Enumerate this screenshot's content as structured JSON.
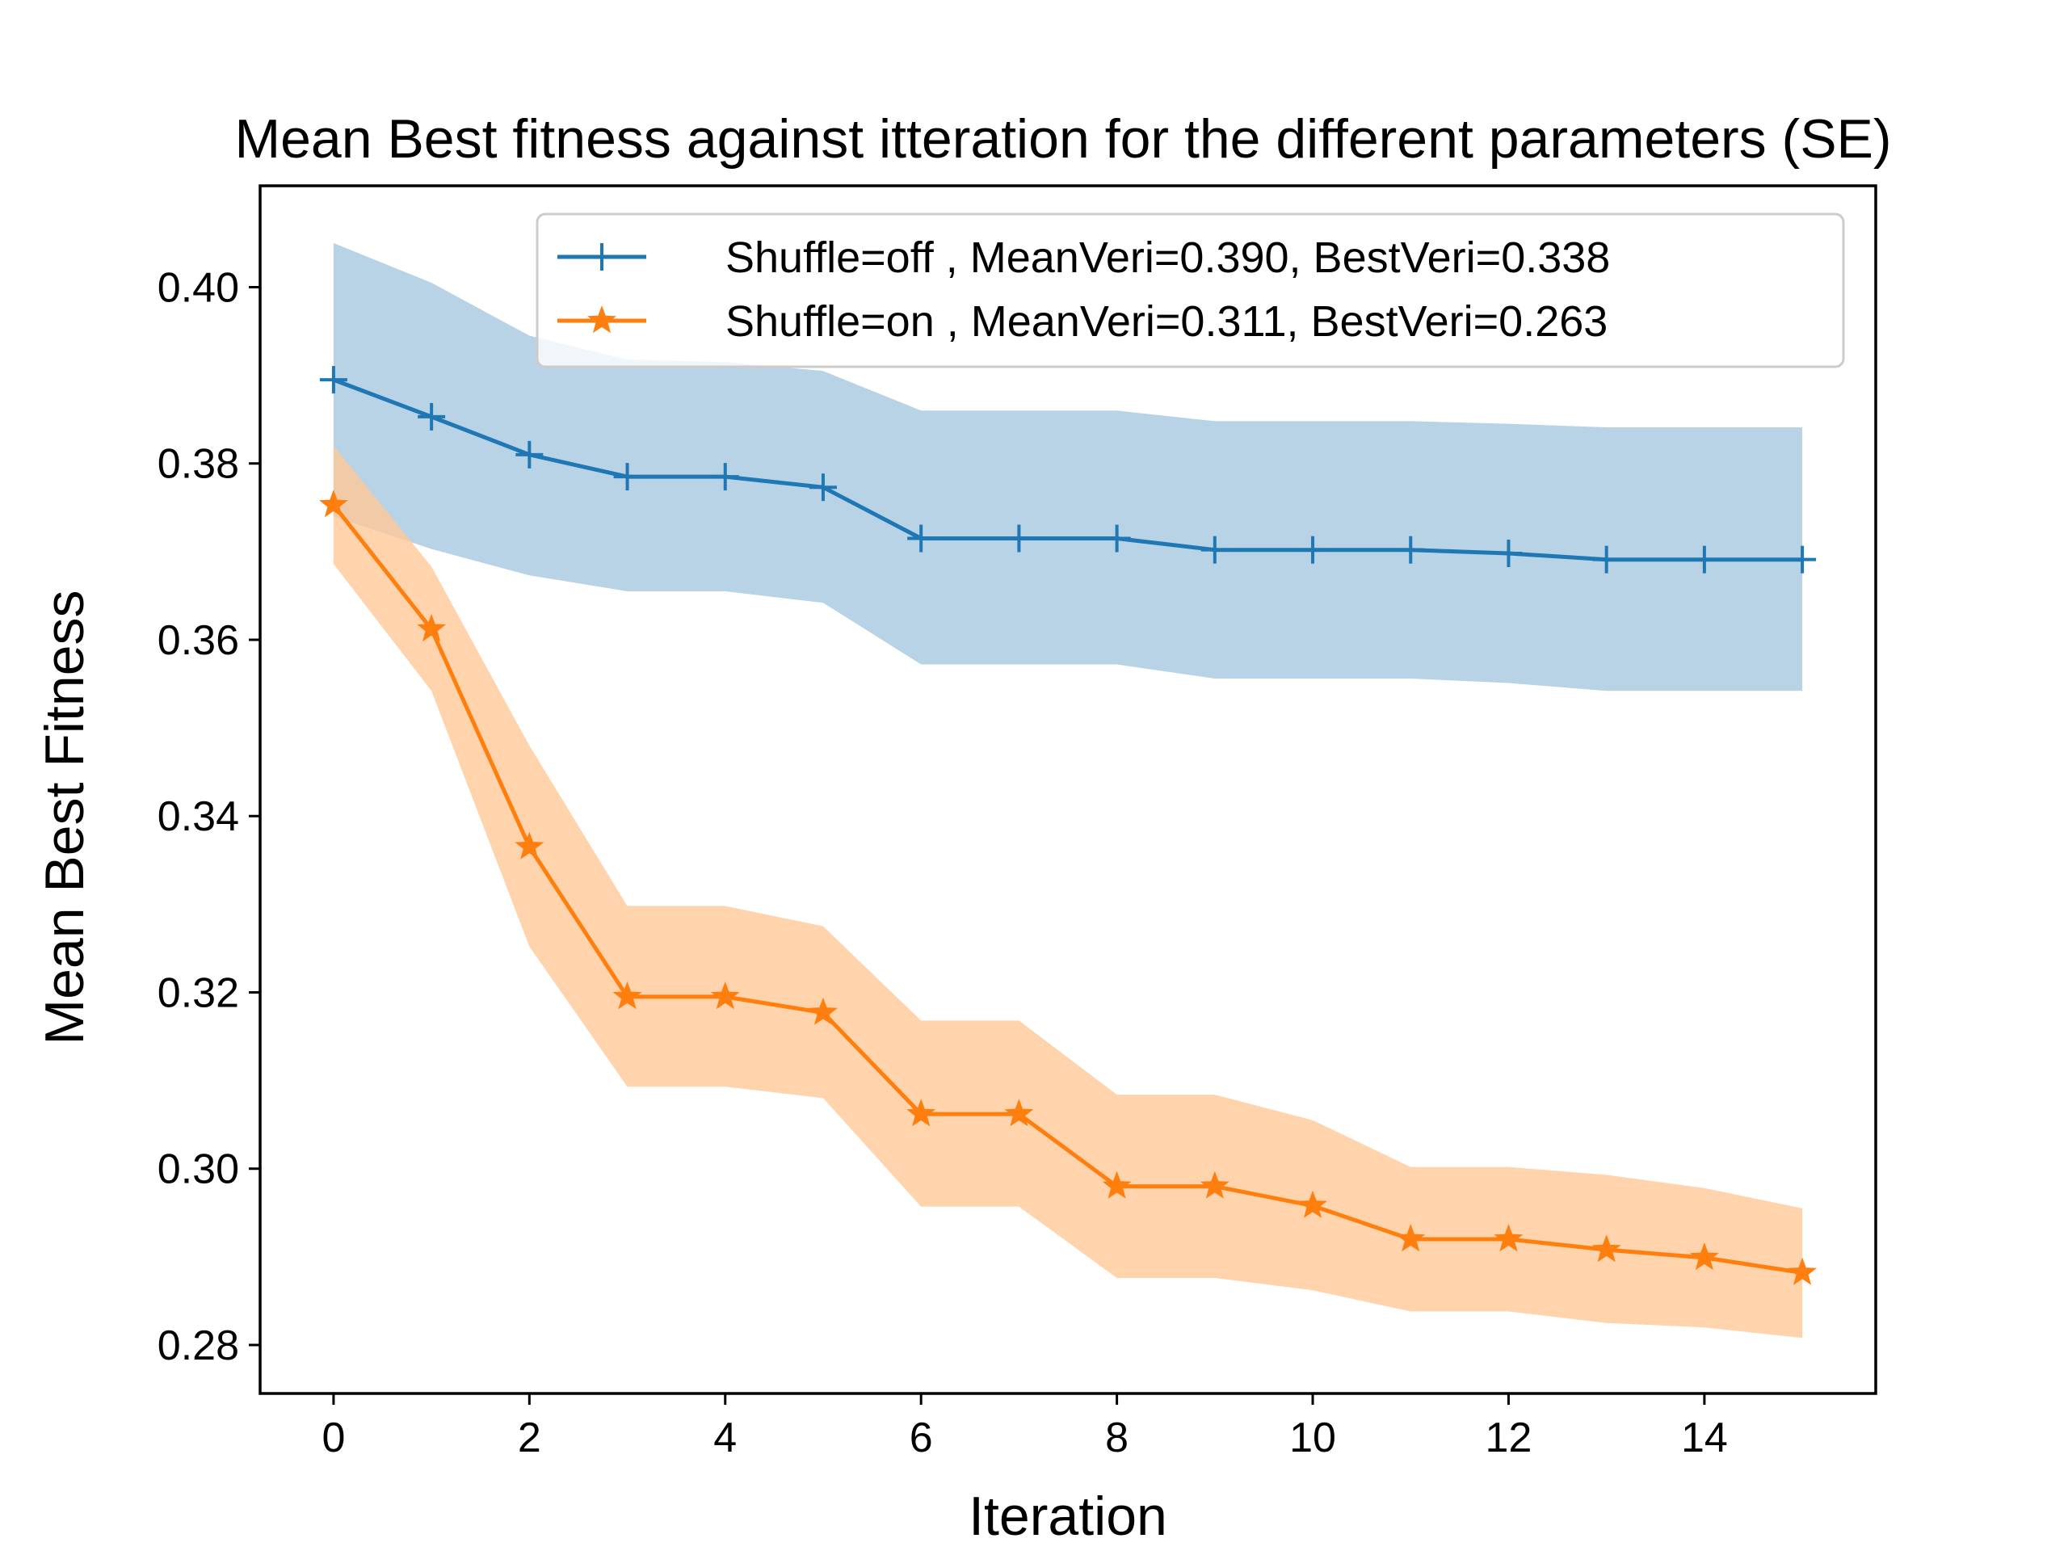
{
  "chart_data": {
    "type": "line",
    "title": "Mean Best fitness against itteration for the different parameters (SE)",
    "xlabel": "Iteration",
    "ylabel": "Mean Best Fitness",
    "xlim": [
      -0.75,
      15.75
    ],
    "ylim": [
      0.2745,
      0.4115
    ],
    "xticks": [
      0,
      2,
      4,
      6,
      8,
      10,
      12,
      14
    ],
    "xtick_labels": [
      "0",
      "2",
      "4",
      "6",
      "8",
      "10",
      "12",
      "14"
    ],
    "yticks": [
      0.28,
      0.3,
      0.32,
      0.34,
      0.36,
      0.38,
      0.4
    ],
    "ytick_labels": [
      "0.28",
      "0.30",
      "0.32",
      "0.34",
      "0.36",
      "0.38",
      "0.40"
    ],
    "grid": false,
    "legend_position": "top-right",
    "x": [
      0,
      1,
      2,
      3,
      4,
      5,
      6,
      7,
      8,
      9,
      10,
      11,
      12,
      13,
      14,
      15
    ],
    "series": [
      {
        "name": "Shuffle=off , MeanVeri=0.390, BestVeri=0.338",
        "color": "#1f77b4",
        "fill_color": "#a6c7e0",
        "marker": "plus",
        "values": [
          0.3895,
          0.3853,
          0.381,
          0.3785,
          0.3785,
          0.3773,
          0.3715,
          0.3715,
          0.3715,
          0.3702,
          0.3702,
          0.3702,
          0.3698,
          0.3691,
          0.3691,
          0.3691
        ],
        "upper": [
          0.405,
          0.4005,
          0.3945,
          0.3918,
          0.3915,
          0.3905,
          0.386,
          0.386,
          0.386,
          0.3848,
          0.3848,
          0.3848,
          0.3845,
          0.3841,
          0.3841,
          0.3841
        ],
        "lower": [
          0.374,
          0.3703,
          0.3673,
          0.3655,
          0.3655,
          0.3642,
          0.3572,
          0.3572,
          0.3572,
          0.3556,
          0.3556,
          0.3556,
          0.3551,
          0.3542,
          0.3542,
          0.3542
        ]
      },
      {
        "name": "Shuffle=on , MeanVeri=0.311, BestVeri=0.263",
        "color": "#ff7f0e",
        "fill_color": "#ffc999",
        "marker": "star",
        "values": [
          0.3753,
          0.3612,
          0.3365,
          0.3195,
          0.3195,
          0.3177,
          0.3062,
          0.3062,
          0.298,
          0.298,
          0.2958,
          0.292,
          0.292,
          0.2908,
          0.2899,
          0.2882
        ],
        "upper": [
          0.382,
          0.3683,
          0.348,
          0.3298,
          0.3298,
          0.3275,
          0.3168,
          0.3168,
          0.3084,
          0.3084,
          0.3055,
          0.3002,
          0.3002,
          0.2993,
          0.2978,
          0.2955
        ],
        "lower": [
          0.3686,
          0.3542,
          0.3252,
          0.3093,
          0.3093,
          0.308,
          0.2957,
          0.2957,
          0.2876,
          0.2876,
          0.2862,
          0.2838,
          0.2838,
          0.2825,
          0.282,
          0.2808
        ]
      }
    ]
  }
}
